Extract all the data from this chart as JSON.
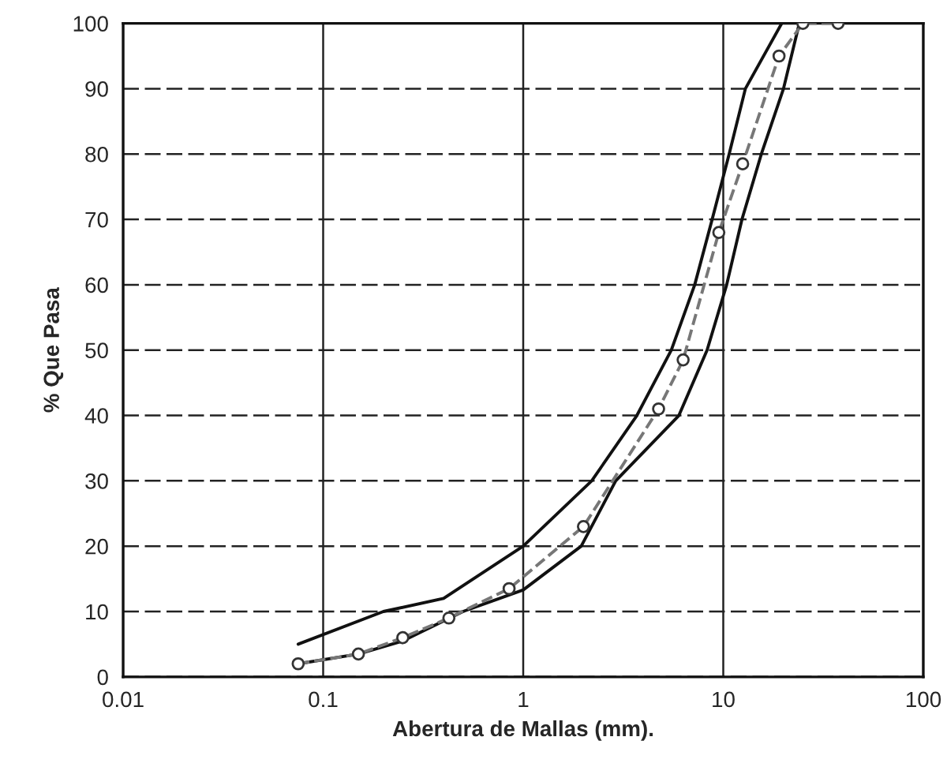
{
  "chart_data": {
    "type": "line",
    "xlabel": "Abertura de Mallas (mm).",
    "ylabel": "% Que Pasa",
    "log": "x",
    "grid": true,
    "legend": false,
    "xlim": [
      0.01,
      100
    ],
    "xticks": [
      {
        "value": 0.01,
        "label": "0.01"
      },
      {
        "value": 0.1,
        "label": "0.1"
      },
      {
        "value": 1,
        "label": "1"
      },
      {
        "value": 10,
        "label": "10"
      },
      {
        "value": 100,
        "label": "100"
      }
    ],
    "ylim": [
      0,
      100
    ],
    "yticks": [
      0,
      10,
      20,
      30,
      40,
      50,
      60,
      70,
      80,
      90,
      100
    ],
    "series": [
      {
        "color": "#111111",
        "line_style": "solid",
        "marker": "none",
        "x": [
          0.075,
          0.2,
          0.4,
          1,
          2.2,
          3.7,
          5.5,
          7.2,
          8.8,
          10.7,
          12.9,
          19.6
        ],
        "values": [
          5,
          10,
          12,
          20,
          30,
          40,
          50,
          60,
          70,
          80,
          90,
          100
        ]
      },
      {
        "color": "#111111",
        "line_style": "solid",
        "marker": "none",
        "x": [
          0.075,
          0.15,
          0.25,
          0.5,
          1,
          1.95,
          2.9,
          6,
          8.3,
          10.4,
          12.4,
          15.5,
          20,
          24
        ],
        "values": [
          2,
          3.5,
          5.5,
          10,
          13.3,
          20,
          30,
          40,
          50,
          60,
          70,
          80,
          90,
          100
        ]
      },
      {
        "color": "#777777",
        "line_style": "dashed",
        "marker": "circle",
        "x": [
          0.075,
          0.15,
          0.25,
          0.425,
          0.85,
          2,
          4.75,
          6.3,
          9.5,
          12.5,
          19,
          25,
          37.5
        ],
        "values": [
          2,
          3.5,
          6,
          9,
          13.5,
          23,
          41,
          48.5,
          68,
          78.5,
          95,
          100,
          100
        ]
      }
    ]
  }
}
